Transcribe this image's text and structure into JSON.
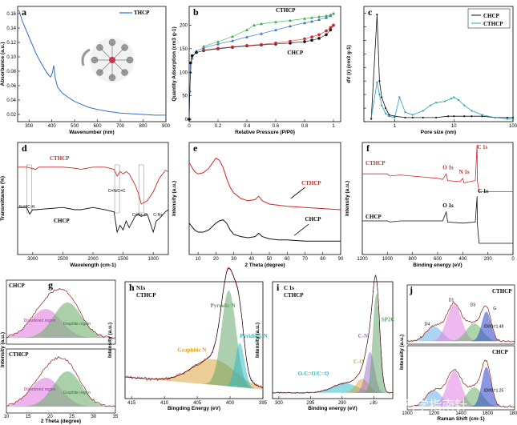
{
  "watermark": "知乎 @科学指南针",
  "colors": {
    "black": "#111111",
    "red": "#d62424",
    "blue": "#2f6fcf",
    "green": "#4a9a3c",
    "cyan": "#24b8c8",
    "teal": "#2a8a8a"
  },
  "chart_data": [
    {
      "id": "a",
      "type": "line",
      "letter": "a",
      "title": "",
      "xlabel": "Wavenumber (nm)",
      "ylabel": "Absorbance (a.u.)",
      "xlim": [
        250,
        900
      ],
      "ylim": [
        0.01,
        0.17
      ],
      "xticks": [
        300,
        400,
        500,
        600,
        700,
        800,
        900
      ],
      "yticks": [
        0.02,
        0.04,
        0.06,
        0.08,
        0.1,
        0.12,
        0.14,
        0.16
      ],
      "legend": [
        "THCP"
      ],
      "series": [
        {
          "name": "THCP",
          "color": "#2f6fcf",
          "x": [
            255,
            270,
            290,
            310,
            330,
            350,
            370,
            385,
            395,
            402,
            408,
            415,
            425,
            445,
            470,
            500,
            530,
            560,
            600,
            650,
            700,
            750,
            800,
            850,
            900
          ],
          "y": [
            0.165,
            0.15,
            0.135,
            0.12,
            0.105,
            0.093,
            0.082,
            0.075,
            0.072,
            0.078,
            0.088,
            0.07,
            0.058,
            0.05,
            0.044,
            0.038,
            0.034,
            0.03,
            0.027,
            0.024,
            0.022,
            0.021,
            0.02,
            0.019,
            0.019
          ]
        }
      ]
    },
    {
      "id": "b",
      "type": "scatter",
      "letter": "b",
      "xlabel": "Relative Pressure (P/P0)",
      "ylabel": "Quantity Adsorption (cm3 g-1)",
      "xlim": [
        0,
        1.05
      ],
      "ylim": [
        -5,
        240
      ],
      "xticks": [
        0.0,
        0.2,
        0.4,
        0.6,
        0.8,
        1.0
      ],
      "yticks": [
        0,
        50,
        100,
        150,
        200
      ],
      "annotations": [
        "CTHCP",
        "CHCP"
      ],
      "series": [
        {
          "name": "CTHCP adsorption",
          "color": "#2f6fcf",
          "x": [
            0.0,
            0.005,
            0.01,
            0.02,
            0.05,
            0.1,
            0.2,
            0.3,
            0.4,
            0.5,
            0.6,
            0.7,
            0.8,
            0.85,
            0.9,
            0.95,
            0.98,
            1.0
          ],
          "y": [
            0,
            60,
            100,
            130,
            145,
            152,
            160,
            167,
            175,
            182,
            190,
            198,
            205,
            208,
            212,
            216,
            220,
            225
          ]
        },
        {
          "name": "CTHCP desorption",
          "color": "#3aaa4a",
          "x": [
            1.0,
            0.98,
            0.95,
            0.9,
            0.85,
            0.8,
            0.7,
            0.6,
            0.5,
            0.45,
            0.4,
            0.3,
            0.2,
            0.1
          ],
          "y": [
            225,
            222,
            220,
            218,
            216,
            214,
            210,
            207,
            203,
            200,
            190,
            176,
            165,
            155
          ]
        },
        {
          "name": "CHCP adsorption",
          "color": "#111111",
          "x": [
            0.0,
            0.01,
            0.02,
            0.05,
            0.1,
            0.2,
            0.3,
            0.4,
            0.5,
            0.6,
            0.7,
            0.8,
            0.85,
            0.9,
            0.95,
            0.98,
            1.0
          ],
          "y": [
            0,
            120,
            135,
            142,
            146,
            150,
            153,
            156,
            158,
            160,
            162,
            165,
            168,
            172,
            180,
            190,
            200
          ]
        },
        {
          "name": "CHCP desorption",
          "color": "#d62424",
          "x": [
            1.0,
            0.98,
            0.95,
            0.9,
            0.85,
            0.8,
            0.7,
            0.6,
            0.5,
            0.4,
            0.3,
            0.2,
            0.1
          ],
          "y": [
            200,
            195,
            188,
            180,
            175,
            171,
            166,
            162,
            159,
            157,
            154,
            151,
            147
          ]
        }
      ]
    },
    {
      "id": "c",
      "type": "line",
      "letter": "c",
      "xlabel": "Pore size (nm)",
      "ylabel": "dV (r) (cm3 g-1)",
      "xscale": "log",
      "xlim": [
        0.3,
        100
      ],
      "ylim": [
        0,
        0.085
      ],
      "xticks": [
        1.0,
        10.0,
        100.0
      ],
      "yticks": [
        0,
        0.01,
        0.02,
        0.03,
        0.04,
        0.05,
        0.06,
        0.07,
        0.08
      ],
      "legend": [
        "CHCP",
        "CTHCP"
      ],
      "series": [
        {
          "name": "CHCP",
          "color": "#111111",
          "x": [
            0.4,
            0.5,
            0.55,
            0.6,
            0.7,
            0.8,
            1.0,
            1.5,
            2,
            3,
            5,
            8,
            10,
            15,
            20,
            30,
            50,
            80,
            100
          ],
          "y": [
            0.002,
            0.079,
            0.03,
            0.018,
            0.01,
            0.005,
            0.004,
            0.003,
            0.003,
            0.003,
            0.003,
            0.004,
            0.004,
            0.004,
            0.004,
            0.004,
            0.003,
            0.003,
            0.003
          ]
        },
        {
          "name": "CTHCP",
          "color": "#24a0b8",
          "x": [
            0.4,
            0.5,
            0.55,
            0.6,
            0.7,
            0.8,
            1.0,
            1.2,
            1.5,
            2,
            3,
            4,
            5,
            7,
            9,
            10,
            12,
            15,
            20,
            30,
            50,
            80,
            100
          ],
          "y": [
            0.003,
            0.029,
            0.02,
            0.012,
            0.006,
            0.004,
            0.003,
            0.018,
            0.007,
            0.005,
            0.008,
            0.012,
            0.014,
            0.015,
            0.017,
            0.018,
            0.016,
            0.012,
            0.008,
            0.005,
            0.003,
            0.002,
            0.002
          ]
        }
      ]
    },
    {
      "id": "d",
      "type": "line",
      "letter": "d",
      "xlabel": "Wavelength (cm-1)",
      "ylabel": "Transmittance (%)",
      "xlim": [
        3250,
        750
      ],
      "ylim": [
        0,
        1
      ],
      "xticks": [
        3000,
        2500,
        2000,
        1500,
        1000
      ],
      "annotations": [
        "CTHCP",
        "CHCP",
        "N-H/C-H",
        "C=N/C=C",
        "C=N+-C",
        "C-N+"
      ],
      "series": [
        {
          "name": "CTHCP",
          "color": "#d62424",
          "x": [
            3250,
            3100,
            2950,
            2900,
            2800,
            2500,
            2300,
            2200,
            2000,
            1800,
            1650,
            1600,
            1550,
            1500,
            1450,
            1400,
            1300,
            1250,
            1200,
            1100,
            1000,
            950,
            900,
            800,
            750
          ],
          "y": [
            0.78,
            0.78,
            0.76,
            0.78,
            0.78,
            0.78,
            0.77,
            0.76,
            0.78,
            0.78,
            0.76,
            0.7,
            0.74,
            0.72,
            0.74,
            0.72,
            0.62,
            0.55,
            0.45,
            0.48,
            0.56,
            0.62,
            0.68,
            0.75,
            0.74
          ]
        },
        {
          "name": "CHCP",
          "color": "#111111",
          "x": [
            3250,
            3100,
            3050,
            3000,
            2950,
            2500,
            2300,
            2200,
            2000,
            1800,
            1650,
            1600,
            1550,
            1500,
            1450,
            1400,
            1300,
            1250,
            1200,
            1100,
            1000,
            950,
            900,
            800,
            750
          ],
          "y": [
            0.42,
            0.42,
            0.36,
            0.4,
            0.4,
            0.42,
            0.4,
            0.4,
            0.42,
            0.4,
            0.38,
            0.2,
            0.26,
            0.22,
            0.3,
            0.24,
            0.34,
            0.36,
            0.34,
            0.36,
            0.2,
            0.3,
            0.32,
            0.38,
            0.4
          ]
        }
      ]
    },
    {
      "id": "e",
      "type": "line",
      "letter": "e",
      "xlabel": "2 Theta (degree)",
      "ylabel": "Intensity (a.u.)",
      "xlim": [
        5,
        90
      ],
      "ylim": [
        0,
        1
      ],
      "xticks": [
        10,
        20,
        30,
        40,
        50,
        60,
        70,
        80,
        90
      ],
      "annotations": [
        "CTHCP",
        "CHCP"
      ],
      "series": [
        {
          "name": "CTHCP",
          "color": "#d62424",
          "x": [
            5,
            8,
            10,
            13,
            16,
            20,
            22,
            24,
            26,
            28,
            30,
            34,
            38,
            42,
            44,
            46,
            50,
            55,
            60,
            70,
            80,
            90
          ],
          "y": [
            0.82,
            0.74,
            0.72,
            0.73,
            0.77,
            0.86,
            0.84,
            0.78,
            0.68,
            0.6,
            0.55,
            0.5,
            0.48,
            0.49,
            0.52,
            0.48,
            0.45,
            0.44,
            0.43,
            0.42,
            0.41,
            0.4
          ]
        },
        {
          "name": "CHCP",
          "color": "#111111",
          "x": [
            5,
            8,
            10,
            13,
            16,
            20,
            22,
            24,
            26,
            28,
            30,
            34,
            38,
            42,
            44,
            46,
            50,
            55,
            60,
            70,
            80,
            90
          ],
          "y": [
            0.28,
            0.22,
            0.2,
            0.2,
            0.22,
            0.28,
            0.3,
            0.31,
            0.28,
            0.22,
            0.18,
            0.16,
            0.15,
            0.16,
            0.19,
            0.16,
            0.14,
            0.13,
            0.13,
            0.12,
            0.12,
            0.12
          ]
        }
      ]
    },
    {
      "id": "f",
      "type": "line",
      "letter": "f",
      "xlabel": "Binding energy (eV)",
      "ylabel": "Intensity (a.u.)",
      "xlim": [
        1200,
        0
      ],
      "ylim": [
        0,
        1
      ],
      "xticks": [
        1200,
        1000,
        800,
        600,
        400,
        200,
        0
      ],
      "annotations": [
        "CTHCP",
        "CHCP",
        "O 1s",
        "N 1s",
        "C 1s",
        "O 1s",
        "C 1s"
      ],
      "series": [
        {
          "name": "CTHCP",
          "color": "#d62424",
          "x": [
            1200,
            1100,
            1000,
            980,
            900,
            800,
            700,
            600,
            560,
            532,
            520,
            420,
            400,
            390,
            300,
            286,
            284,
            270,
            200,
            100,
            0
          ],
          "y": [
            0.72,
            0.72,
            0.72,
            0.7,
            0.71,
            0.7,
            0.69,
            0.68,
            0.67,
            0.72,
            0.66,
            0.65,
            0.68,
            0.64,
            0.66,
            0.98,
            0.66,
            0.56,
            0.56,
            0.56,
            0.56
          ]
        },
        {
          "name": "CHCP",
          "color": "#111111",
          "x": [
            1200,
            1100,
            1000,
            980,
            900,
            800,
            700,
            600,
            560,
            532,
            520,
            400,
            300,
            286,
            284,
            270,
            200,
            100,
            0
          ],
          "y": [
            0.3,
            0.3,
            0.3,
            0.29,
            0.3,
            0.3,
            0.3,
            0.3,
            0.3,
            0.38,
            0.29,
            0.28,
            0.29,
            0.52,
            0.28,
            0.1,
            0.1,
            0.1,
            0.1
          ]
        }
      ]
    },
    {
      "id": "g",
      "type": "area",
      "letter": "g",
      "xlabel": "2 Theta (degree)",
      "ylabel": "Intensity (a.u.)",
      "xlim": [
        10,
        35
      ],
      "xticks": [
        10,
        15,
        20,
        25,
        30,
        35
      ],
      "subplots": [
        {
          "label": "CHCP",
          "components": [
            "Disordered region",
            "Graphite region"
          ]
        },
        {
          "label": "CTHCP",
          "components": [
            "Disordered region",
            "Graphite region"
          ]
        }
      ]
    },
    {
      "id": "h",
      "type": "area",
      "letter": "h",
      "xlabel": "Bingding Energy (eV)",
      "ylabel": "Intensity (a.u.)",
      "xlim": [
        416,
        395
      ],
      "xticks": [
        415,
        410,
        405,
        400,
        395
      ],
      "title_lines": [
        "N1s",
        "CTHCP"
      ],
      "components": [
        {
          "name": "Graphitic N",
          "center": 402.5,
          "color": "#d8a030"
        },
        {
          "name": "Pyrrolic N",
          "center": 400.2,
          "color": "#5aa060"
        },
        {
          "name": "Pyridinic N",
          "center": 398.5,
          "color": "#24b8c8"
        }
      ]
    },
    {
      "id": "i",
      "type": "area",
      "letter": "i",
      "xlabel": "Binding energy (eV)",
      "ylabel": "Intensity (a.u.)",
      "xlim": [
        301,
        282
      ],
      "xticks": [
        300,
        295,
        290,
        285
      ],
      "title_lines": [
        "C 1s",
        "CTHCP"
      ],
      "components": [
        {
          "name": "O-C=O/C=O",
          "center": 289.5,
          "color": "#24b8c8"
        },
        {
          "name": "C-O",
          "center": 286.8,
          "color": "#e0a030"
        },
        {
          "name": "C-N",
          "center": 285.6,
          "color": "#9a70c8"
        },
        {
          "name": "SP2C",
          "center": 284.6,
          "color": "#5aa060"
        }
      ]
    },
    {
      "id": "j",
      "type": "area",
      "letter": "j",
      "xlabel": "Raman Shift (cm-1)",
      "ylabel": "Intensity (a.u.)",
      "xlim": [
        1000,
        1800
      ],
      "xticks": [
        1000,
        1200,
        1400,
        1600,
        1800
      ],
      "subplots": [
        {
          "label": "CTHCP",
          "ratio": "ID/IG=1.48",
          "components": [
            "D4",
            "D1",
            "D3",
            "G"
          ]
        },
        {
          "label": "CHCP",
          "ratio": "ID/IG=1.25",
          "components": [
            "D4",
            "D1",
            "D3",
            "G"
          ]
        }
      ]
    }
  ]
}
